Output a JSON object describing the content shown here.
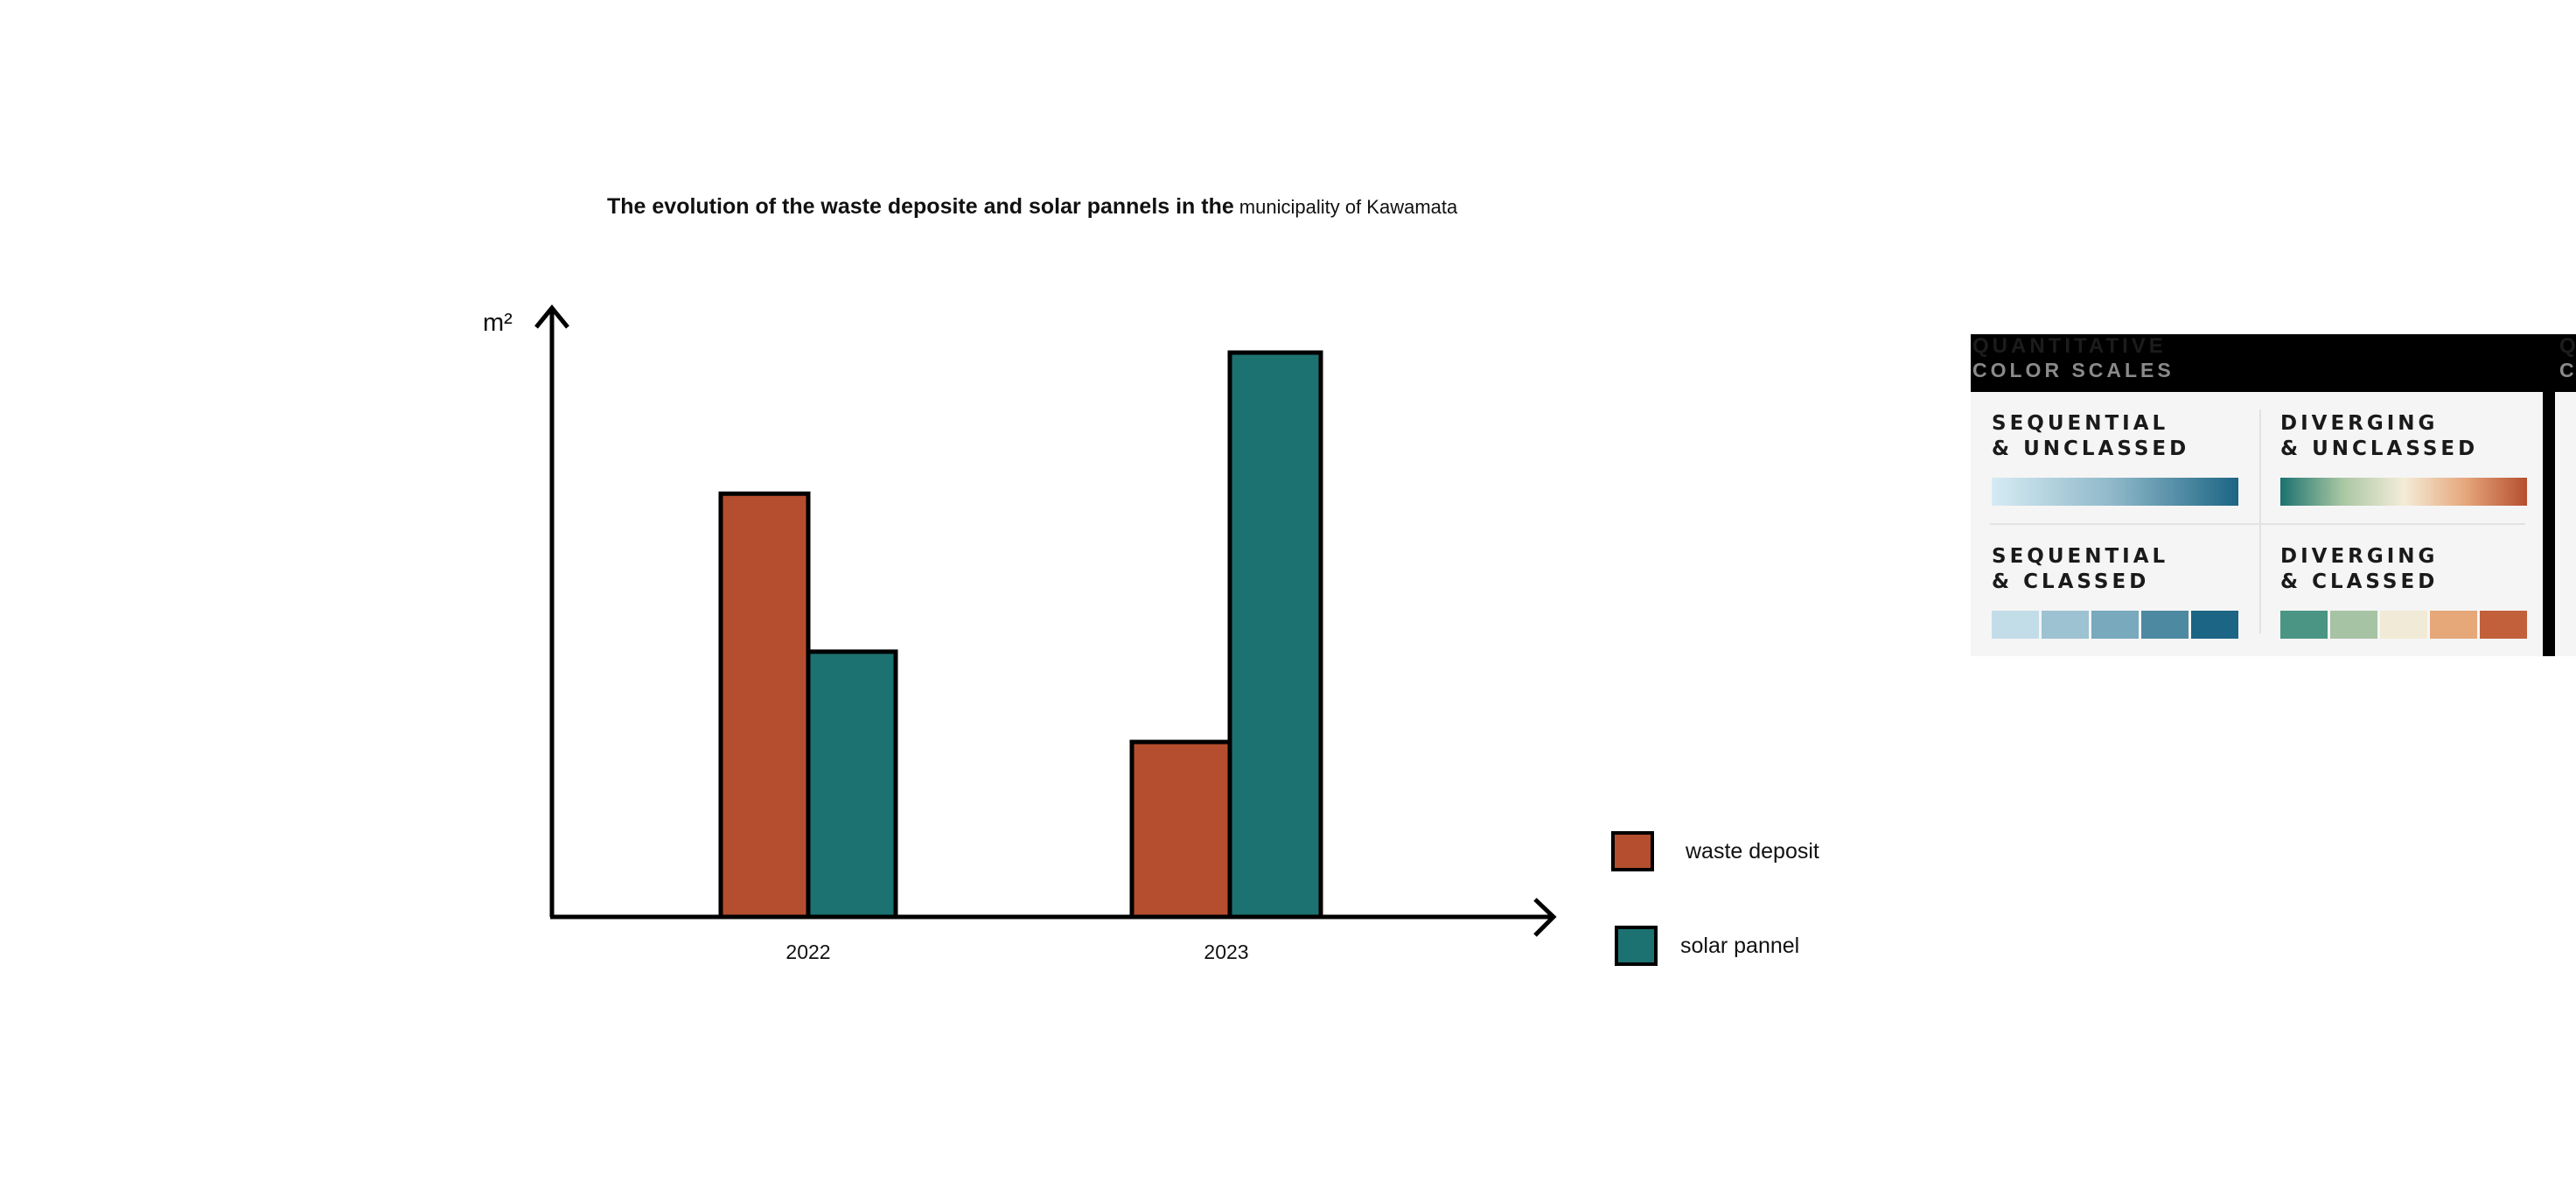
{
  "chart_data": {
    "type": "bar",
    "title_main": "The evolution of the waste deposite and solar pannels in the",
    "title_rest": "municipality of Kawamata",
    "ylabel": "m²",
    "categories": [
      "2022",
      "2023"
    ],
    "series": [
      {
        "name": "waste deposit",
        "color": "#b54e2e",
        "values": [
          75,
          31
        ]
      },
      {
        "name": "solar pannel",
        "color": "#1c7270",
        "values": [
          47,
          100
        ]
      }
    ],
    "ylim": [
      0,
      108
    ],
    "grid": false,
    "legend": "right"
  },
  "color_scales_panel": {
    "header_line1": "QUANTITATIVE",
    "header_line2": "COLOR SCALES",
    "header_line1_cut": "Q",
    "header_line2_cut": "C",
    "cells": [
      {
        "title_line1": "SEQUENTIAL",
        "title_line2": "& UNCLASSED",
        "kind": "gradient",
        "colors": [
          "#d6ebf3",
          "#8db7c8",
          "#1c6584"
        ]
      },
      {
        "title_line1": "DIVERGING",
        "title_line2": "& UNCLASSED",
        "kind": "gradient",
        "colors": [
          "#1c7270",
          "#a8c6a2",
          "#f4ecd8",
          "#e6a77c",
          "#b54e2e"
        ]
      },
      {
        "title_line1": "SEQUENTIAL",
        "title_line2": "& CLASSED",
        "kind": "classed",
        "colors": [
          "#c2dde8",
          "#9dc2d2",
          "#78a9bc",
          "#4d8aa1",
          "#1c6584"
        ]
      },
      {
        "title_line1": "DIVERGING",
        "title_line2": "& CLASSED",
        "kind": "classed",
        "colors": [
          "#4a9583",
          "#a6c3a3",
          "#f1ead6",
          "#e6a779",
          "#c1603a"
        ]
      }
    ]
  }
}
